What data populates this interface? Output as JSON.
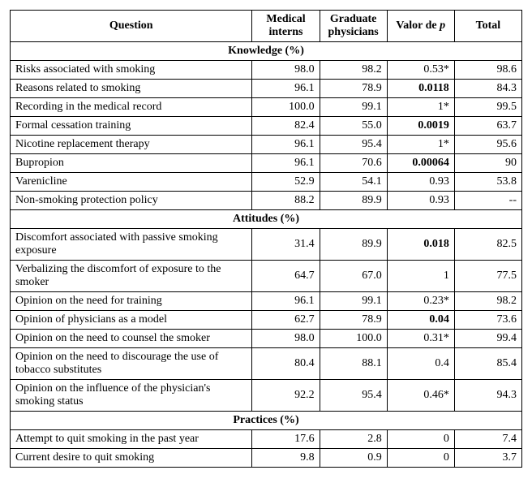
{
  "columns": {
    "question": "Question",
    "interns": "Medical interns",
    "grads": "Graduate physicians",
    "pval_prefix": "Valor de ",
    "pval_var": "p",
    "total": "Total"
  },
  "sections": [
    {
      "title": "Knowledge (%)",
      "rows": [
        {
          "q": "Risks associated with smoking",
          "i": "98.0",
          "g": "98.2",
          "p": "0.53*",
          "pb": false,
          "t": "98.6"
        },
        {
          "q": "Reasons related to smoking",
          "i": "96.1",
          "g": "78.9",
          "p": "0.0118",
          "pb": true,
          "t": "84.3"
        },
        {
          "q": "Recording in the medical record",
          "i": "100.0",
          "g": "99.1",
          "p": "1*",
          "pb": false,
          "t": "99.5"
        },
        {
          "q": "Formal cessation training",
          "i": "82.4",
          "g": "55.0",
          "p": "0.0019",
          "pb": true,
          "t": "63.7"
        },
        {
          "q": "Nicotine replacement therapy",
          "i": "96.1",
          "g": "95.4",
          "p": "1*",
          "pb": false,
          "t": "95.6"
        },
        {
          "q": "Bupropion",
          "i": "96.1",
          "g": "70.6",
          "p": "0.00064",
          "pb": true,
          "t": "90"
        },
        {
          "q": "Varenicline",
          "i": "52.9",
          "g": "54.1",
          "p": "0.93",
          "pb": false,
          "t": "53.8"
        },
        {
          "q": "Non-smoking protection policy",
          "i": "88.2",
          "g": "89.9",
          "p": "0.93",
          "pb": false,
          "t": "--"
        }
      ]
    },
    {
      "title": "Attitudes (%)",
      "rows": [
        {
          "q": "Discomfort associated with passive smoking exposure",
          "i": "31.4",
          "g": "89.9",
          "p": "0.018",
          "pb": true,
          "t": "82.5"
        },
        {
          "q": "Verbalizing the discomfort of exposure to the smoker",
          "i": "64.7",
          "g": "67.0",
          "p": "1",
          "pb": false,
          "t": "77.5"
        },
        {
          "q": "Opinion on the need for training",
          "i": "96.1",
          "g": "99.1",
          "p": "0.23*",
          "pb": false,
          "t": "98.2"
        },
        {
          "q": "Opinion of physicians as a model",
          "i": "62.7",
          "g": "78.9",
          "p": "0.04",
          "pb": true,
          "t": "73.6"
        },
        {
          "q": "Opinion on the need to counsel the smoker",
          "i": "98.0",
          "g": "100.0",
          "p": "0.31*",
          "pb": false,
          "t": "99.4"
        },
        {
          "q": "Opinion on the need to discourage the use of tobacco substitutes",
          "i": "80.4",
          "g": "88.1",
          "p": "0.4",
          "pb": false,
          "t": "85.4"
        },
        {
          "q": "Opinion on the influence of the physician's smoking status",
          "i": "92.2",
          "g": "95.4",
          "p": "0.46*",
          "pb": false,
          "t": "94.3"
        }
      ]
    },
    {
      "title": "Practices (%)",
      "rows": [
        {
          "q": "Attempt to quit smoking in the past year",
          "i": "17.6",
          "g": "2.8",
          "p": "0",
          "pb": false,
          "t": "7.4"
        },
        {
          "q": "Current desire to quit smoking",
          "i": "9.8",
          "g": "0.9",
          "p": "0",
          "pb": false,
          "t": "3.7"
        }
      ]
    }
  ]
}
